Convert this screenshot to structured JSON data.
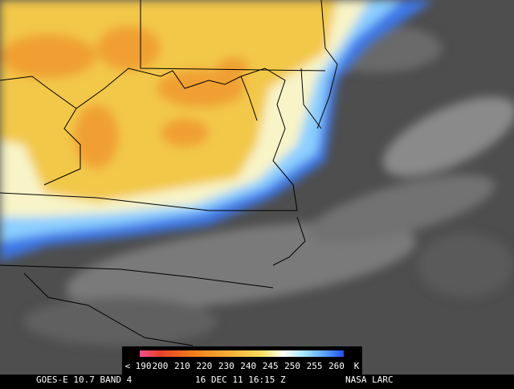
{
  "legend": {
    "labels": [
      "< 190",
      "200",
      "210",
      "220",
      "230",
      "240",
      "245",
      "250",
      "255",
      "260"
    ],
    "unit": "K"
  },
  "footer": {
    "satellite": "GOES-E 10.7 BAND 4",
    "timestamp": "16 DEC 11 16:15 Z",
    "source": "NASA LARC"
  }
}
